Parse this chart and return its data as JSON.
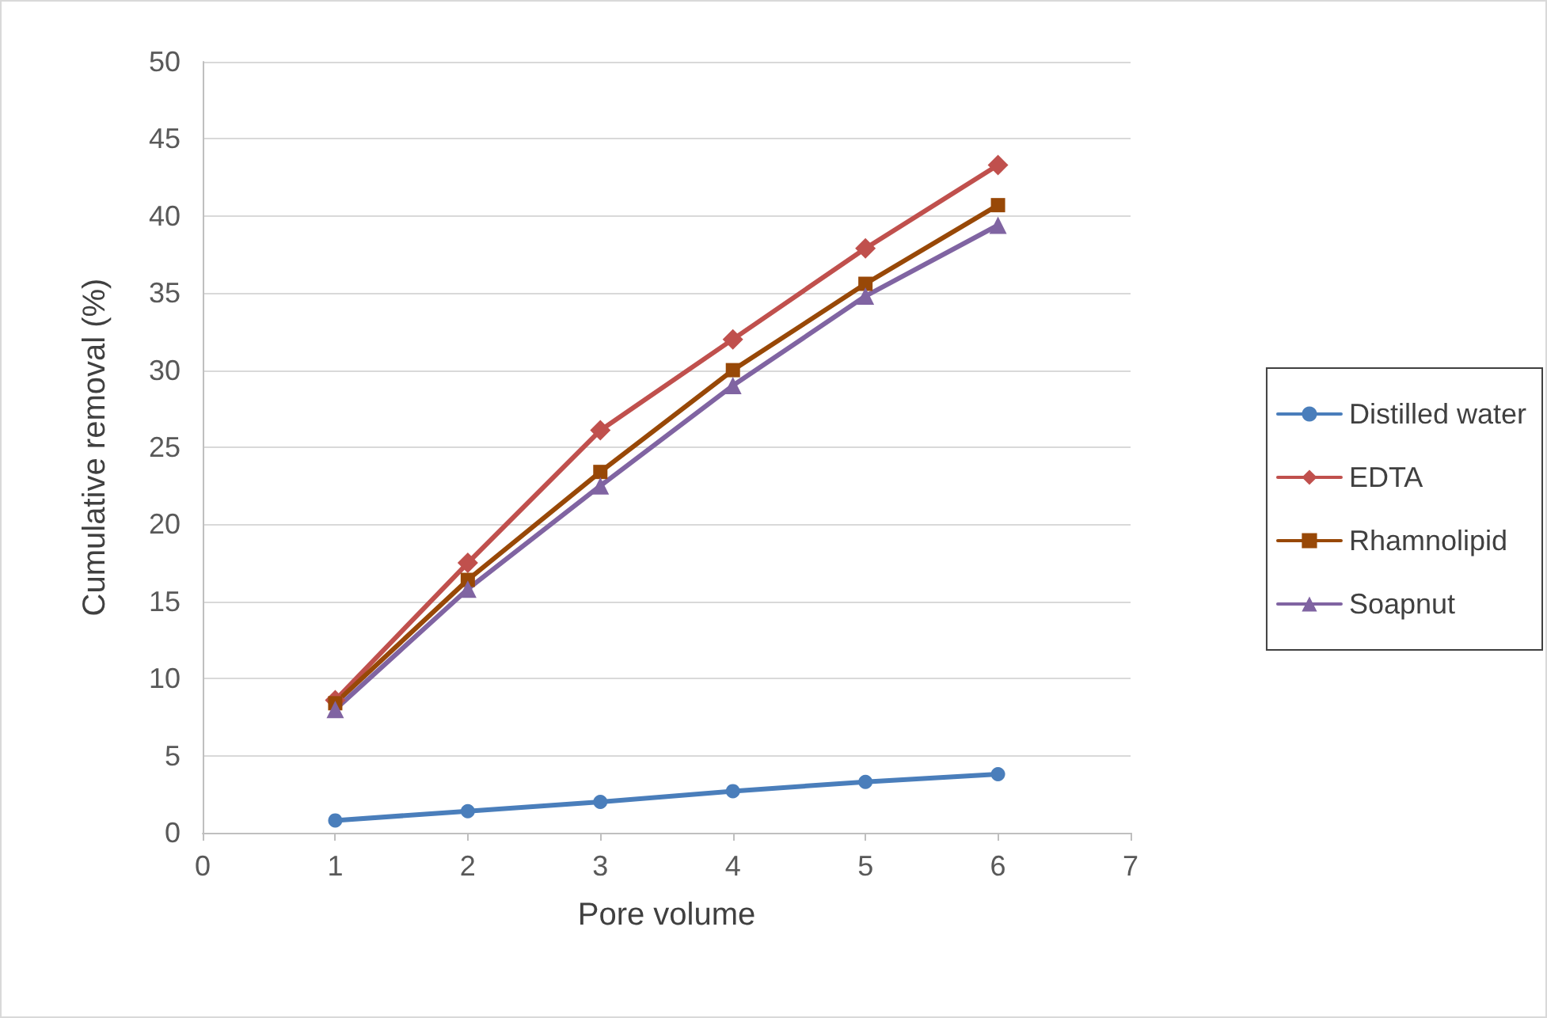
{
  "chart_data": {
    "type": "line",
    "xlabel": "Pore volume",
    "ylabel": "Cumulative removal (%)",
    "x": [
      1,
      2,
      3,
      4,
      5,
      6
    ],
    "xlim": [
      0,
      7
    ],
    "xticks": [
      0,
      1,
      2,
      3,
      4,
      5,
      6,
      7
    ],
    "ylim": [
      0,
      50
    ],
    "yticks": [
      0,
      5,
      10,
      15,
      20,
      25,
      30,
      35,
      40,
      45,
      50
    ],
    "grid": "y",
    "legend": "right",
    "series": [
      {
        "name": "Distilled water",
        "color": "#4a7ebb",
        "marker": "circle",
        "values": [
          0.8,
          1.4,
          2.0,
          2.7,
          3.3,
          3.8
        ]
      },
      {
        "name": "EDTA",
        "color": "#c0504d",
        "marker": "diamond",
        "values": [
          8.6,
          17.5,
          26.1,
          32.0,
          37.9,
          43.3
        ]
      },
      {
        "name": "Rhamnolipid",
        "color": "#984807",
        "marker": "square",
        "values": [
          8.4,
          16.4,
          23.4,
          30.0,
          35.6,
          40.7
        ]
      },
      {
        "name": "Soapnut",
        "color": "#8064a2",
        "marker": "triangle",
        "values": [
          8.0,
          15.8,
          22.5,
          29.0,
          34.8,
          39.4
        ]
      }
    ]
  }
}
